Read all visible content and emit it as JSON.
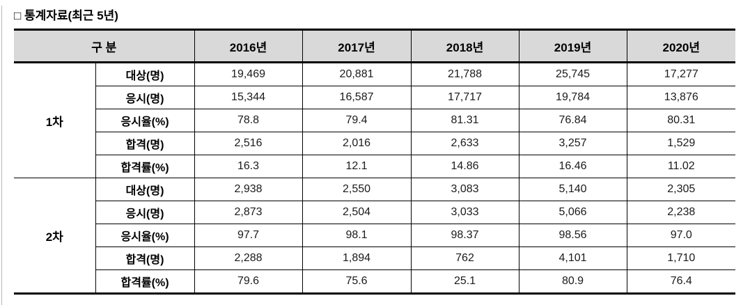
{
  "page": {
    "title": "□ 통계자료(최근 5년)"
  },
  "table": {
    "header": {
      "gubun": "구 분",
      "years": [
        "2016년",
        "2017년",
        "2018년",
        "2019년",
        "2020년"
      ]
    },
    "sections": [
      {
        "group": "1차",
        "rows": [
          {
            "label": "대상(명)",
            "values": [
              "19,469",
              "20,881",
              "21,788",
              "25,745",
              "17,277"
            ]
          },
          {
            "label": "응시(명)",
            "values": [
              "15,344",
              "16,587",
              "17,717",
              "19,784",
              "13,876"
            ]
          },
          {
            "label": "응시율(%)",
            "values": [
              "78.8",
              "79.4",
              "81.31",
              "76.84",
              "80.31"
            ]
          },
          {
            "label": "합격(명)",
            "values": [
              "2,516",
              "2,016",
              "2,633",
              "3,257",
              "1,529"
            ]
          },
          {
            "label": "합격률(%)",
            "values": [
              "16.3",
              "12.1",
              "14.86",
              "16.46",
              "11.02"
            ]
          }
        ]
      },
      {
        "group": "2차",
        "rows": [
          {
            "label": "대상(명)",
            "values": [
              "2,938",
              "2,550",
              "3,083",
              "5,140",
              "2,305"
            ]
          },
          {
            "label": "응시(명)",
            "values": [
              "2,873",
              "2,504",
              "3,033",
              "5,066",
              "2,238"
            ]
          },
          {
            "label": "응시율(%)",
            "values": [
              "97.7",
              "98.1",
              "98.37",
              "98.56",
              "97.0"
            ]
          },
          {
            "label": "합격(명)",
            "values": [
              "2,288",
              "1,894",
              "762",
              "4,101",
              "1,710"
            ]
          },
          {
            "label": "합격률(%)",
            "values": [
              "79.6",
              "75.6",
              "25.1",
              "80.9",
              "76.4"
            ]
          }
        ]
      }
    ],
    "colors": {
      "header_bg": "#d9d9d9",
      "border": "#000000"
    }
  }
}
